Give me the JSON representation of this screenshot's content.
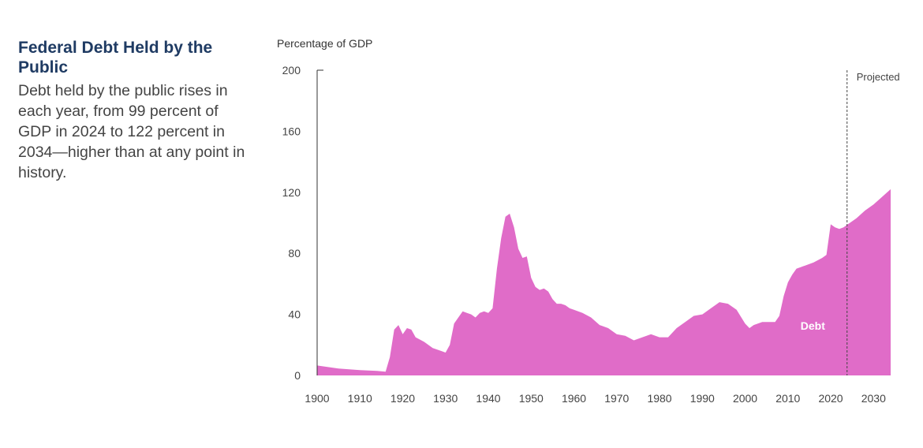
{
  "sidebar": {
    "title": "Federal Debt Held by the Public",
    "description": "Debt held by the public rises in each year, from 99 percent of GDP in 2024 to 122 percent in 2034—higher than at any point in history."
  },
  "chart_data": {
    "type": "area",
    "title": "Federal Debt Held by the Public",
    "ylabel": "Percentage of GDP",
    "xlabel": "",
    "ylim": [
      0,
      200
    ],
    "xlim": [
      1900,
      2034
    ],
    "yticks": [
      0,
      40,
      80,
      120,
      160,
      200
    ],
    "xticks": [
      1900,
      1910,
      1920,
      1930,
      1940,
      1950,
      1960,
      1970,
      1980,
      1990,
      2000,
      2010,
      2020,
      2030
    ],
    "projection_start": 2024,
    "projection_label": "Projected",
    "series": [
      {
        "name": "Debt",
        "color": "#e06cc8",
        "x": [
          1900,
          1905,
          1910,
          1914,
          1916,
          1917,
          1918,
          1919,
          1920,
          1921,
          1922,
          1923,
          1925,
          1927,
          1929,
          1930,
          1931,
          1932,
          1933,
          1934,
          1935,
          1936,
          1937,
          1938,
          1939,
          1940,
          1941,
          1942,
          1943,
          1944,
          1945,
          1946,
          1947,
          1948,
          1949,
          1950,
          1951,
          1952,
          1953,
          1954,
          1955,
          1956,
          1957,
          1958,
          1959,
          1960,
          1962,
          1964,
          1966,
          1968,
          1970,
          1972,
          1974,
          1976,
          1978,
          1980,
          1982,
          1984,
          1986,
          1988,
          1990,
          1992,
          1994,
          1996,
          1998,
          2000,
          2001,
          2002,
          2004,
          2006,
          2007,
          2008,
          2009,
          2010,
          2011,
          2012,
          2014,
          2016,
          2018,
          2019,
          2020,
          2021,
          2022,
          2023,
          2024,
          2026,
          2028,
          2030,
          2032,
          2034
        ],
        "values": [
          6.5,
          4.5,
          3.5,
          3,
          2.5,
          12,
          30,
          33,
          27,
          31,
          30,
          25,
          22,
          18,
          16,
          15,
          20,
          34,
          38,
          42,
          41,
          40,
          38,
          41,
          42,
          41,
          44,
          70,
          90,
          104,
          106,
          97,
          83,
          77,
          78,
          64,
          58,
          56,
          57,
          55,
          50,
          47,
          47,
          46,
          44,
          43,
          41,
          38,
          33,
          31,
          27,
          26,
          23,
          25,
          27,
          25,
          25,
          31,
          35,
          39,
          40,
          44,
          48,
          47,
          43,
          34,
          31,
          33,
          35,
          35,
          35,
          39,
          52,
          61,
          66,
          70,
          72,
          74,
          77,
          79,
          99,
          97,
          96,
          97,
          99,
          103,
          108,
          112,
          117,
          122
        ]
      }
    ]
  }
}
